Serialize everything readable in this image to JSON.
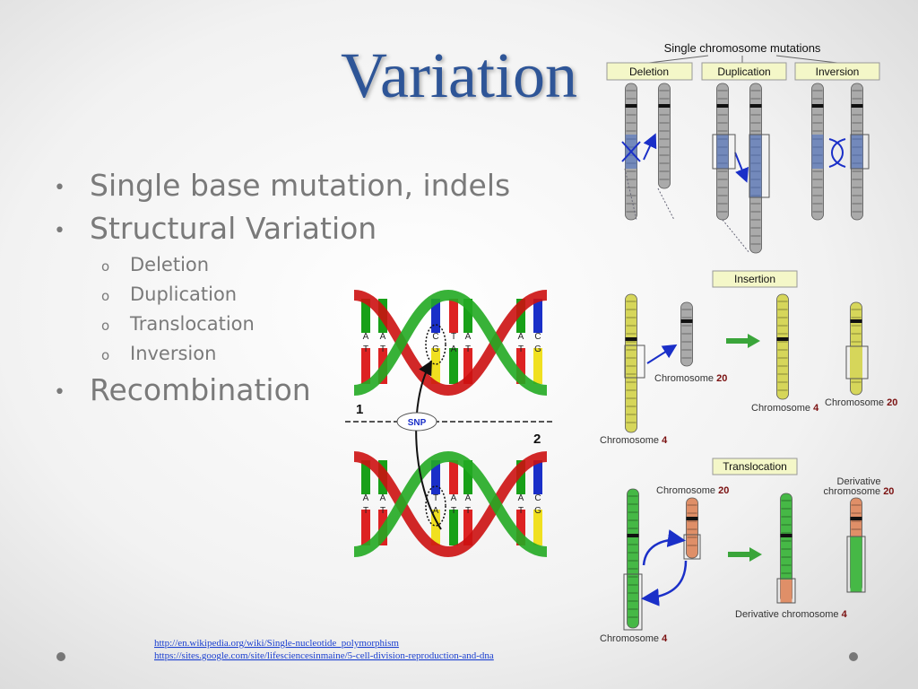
{
  "title": "Variation",
  "bullets": [
    {
      "text": "Single base mutation, indels"
    },
    {
      "text": "Structural Variation",
      "sub": [
        "Deletion",
        "Duplication",
        "Translocation",
        "Inversion"
      ]
    },
    {
      "text": "Recombination"
    }
  ],
  "links": [
    "http://en.wikipedia.org/wiki/Single-nucleotide_polymorphism",
    "https://sites.google.com/site/lifesciencesinmaine/5-cell-division-reproduction-and-dna"
  ],
  "snp_figure": {
    "strand_labels": [
      "1",
      "2"
    ],
    "marker": "SNP",
    "top_bases": [
      [
        "A",
        "T"
      ],
      [
        "A",
        "T"
      ],
      [
        "C",
        "G"
      ],
      [
        "T",
        "A"
      ],
      [
        "A",
        "T"
      ],
      [
        "A",
        "T"
      ],
      [
        "C",
        "G"
      ]
    ],
    "bottom_bases": [
      [
        "A",
        "T"
      ],
      [
        "A",
        "T"
      ],
      [
        "T",
        "A"
      ],
      [
        "A",
        "T"
      ],
      [
        "A",
        "T"
      ],
      [
        "A",
        "T"
      ],
      [
        "C",
        "G"
      ]
    ]
  },
  "mutation_figure": {
    "title": "Single chromosome mutations",
    "types": [
      "Deletion",
      "Duplication",
      "Inversion"
    ],
    "insertion": {
      "title": "Insertion",
      "labels": [
        {
          "name": "Chromosome",
          "number": "20"
        },
        {
          "name": "Chromosome",
          "number": "4"
        },
        {
          "name": "Chromosome",
          "number": "20"
        },
        {
          "name": "Chromosome",
          "number": "4"
        }
      ]
    },
    "translocation": {
      "title": "Translocation",
      "labels": [
        {
          "name": "Chromosome",
          "number": "20"
        },
        {
          "prefix": "Derivative",
          "name": "chromosome",
          "number": "20"
        },
        {
          "name": "Derivative chromosome",
          "number": "4"
        },
        {
          "name": "Chromosome",
          "number": "4"
        }
      ]
    }
  }
}
